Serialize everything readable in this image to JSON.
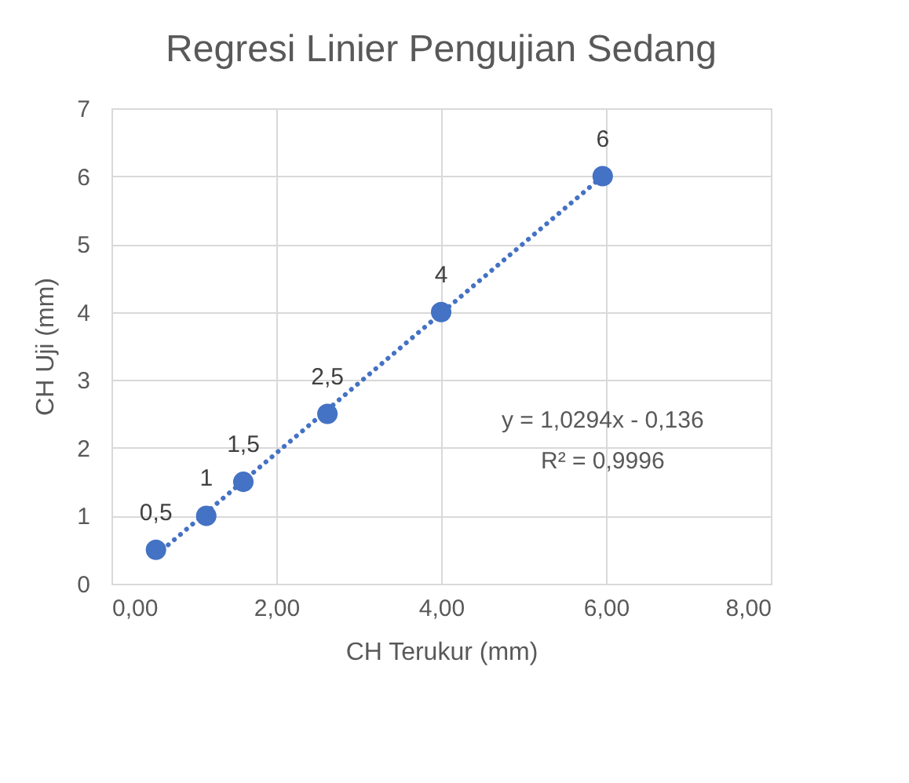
{
  "chart_data": {
    "type": "scatter",
    "title": "Regresi Linier Pengujian Sedang",
    "xlabel": "CH Terukur (mm)",
    "ylabel": "CH Uji (mm)",
    "series": [
      {
        "color": "#4472c4",
        "marker": "circle",
        "x": [
          0.54,
          1.15,
          1.6,
          2.62,
          4.0,
          5.96
        ],
        "values": [
          0.5,
          1,
          1.5,
          2.5,
          4,
          6
        ],
        "value_labels": [
          "0,5",
          "1",
          "1,5",
          "2,5",
          "4",
          "6"
        ]
      },
      {
        "type": "line",
        "color": "#4472c4",
        "line_style": "dotted",
        "x": [
          0.54,
          5.96
        ],
        "values": [
          0.42,
          6.0
        ]
      }
    ],
    "xlim": [
      0,
      8
    ],
    "xticks": [
      {
        "value": 0,
        "label": "0,00"
      },
      {
        "value": 2,
        "label": "2,00"
      },
      {
        "value": 4,
        "label": "4,00"
      },
      {
        "value": 6,
        "label": "6,00"
      },
      {
        "value": 8,
        "label": "8,00"
      }
    ],
    "ylim": [
      0,
      7
    ],
    "yticks": [
      0,
      1,
      2,
      3,
      4,
      5,
      6,
      7
    ],
    "grid": true,
    "annotations": [
      "y = 1,0294x - 0,136",
      "R² = 0,9996"
    ]
  }
}
